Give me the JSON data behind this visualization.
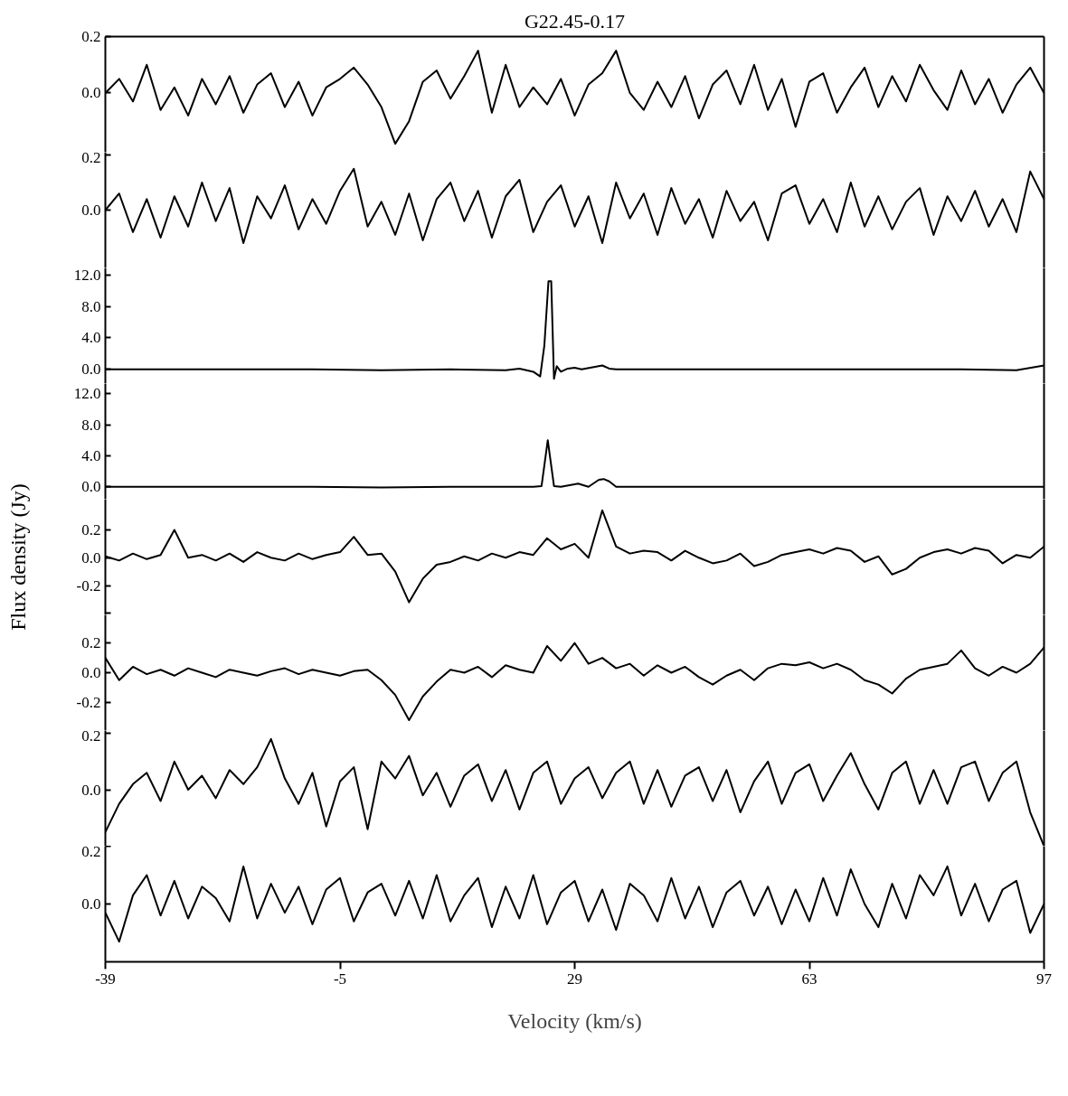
{
  "chart_data": [
    {
      "type": "line",
      "title": "G22.45-0.17",
      "xlim": [
        -39,
        97
      ],
      "ylim": [
        -0.21,
        0.2
      ],
      "yticks": [
        {
          "value": 0.2,
          "label": "0.2"
        },
        {
          "value": 0,
          "label": "0.0"
        }
      ],
      "tick_labels": "y",
      "x": [
        -39,
        -37,
        -35,
        -33,
        -31,
        -29,
        -27,
        -25,
        -23,
        -21,
        -19,
        -17,
        -15,
        -13,
        -11,
        -9,
        -7,
        -5,
        -3,
        -1,
        1,
        3,
        5,
        7,
        9,
        11,
        13,
        15,
        17,
        19,
        21,
        23,
        25,
        27,
        29,
        31,
        33,
        35,
        37,
        39,
        41,
        43,
        45,
        47,
        49,
        51,
        53,
        55,
        57,
        59,
        61,
        63,
        65,
        67,
        69,
        71,
        73,
        75,
        77,
        79,
        81,
        83,
        85,
        87,
        89,
        91,
        93,
        95,
        97
      ],
      "series": [
        {
          "color": "#000000",
          "values": [
            0.0,
            0.05,
            -0.03,
            0.1,
            -0.06,
            0.02,
            -0.08,
            0.05,
            -0.04,
            0.06,
            -0.07,
            0.03,
            0.07,
            -0.05,
            0.04,
            -0.08,
            0.02,
            0.05,
            0.09,
            0.03,
            -0.05,
            -0.18,
            -0.1,
            0.04,
            0.08,
            -0.02,
            0.06,
            0.15,
            -0.07,
            0.1,
            -0.05,
            0.02,
            -0.04,
            0.05,
            -0.08,
            0.03,
            0.07,
            0.15,
            0.0,
            -0.06,
            0.04,
            -0.05,
            0.06,
            -0.09,
            0.03,
            0.08,
            -0.04,
            0.1,
            -0.06,
            0.05,
            -0.12,
            0.04,
            0.07,
            -0.07,
            0.02,
            0.09,
            -0.05,
            0.06,
            -0.03,
            0.1,
            0.01,
            -0.06,
            0.08,
            -0.04,
            0.05,
            -0.07,
            0.03,
            0.09,
            0.0
          ]
        }
      ]
    },
    {
      "type": "line",
      "xlim": [
        -39,
        97
      ],
      "ylim": [
        -0.21,
        0.21
      ],
      "yticks": [
        {
          "value": 0.2,
          "label": "0.2"
        },
        {
          "value": 0,
          "label": "0.0"
        }
      ],
      "tick_labels": "y",
      "x": [
        -39,
        -37,
        -35,
        -33,
        -31,
        -29,
        -27,
        -25,
        -23,
        -21,
        -19,
        -17,
        -15,
        -13,
        -11,
        -9,
        -7,
        -5,
        -3,
        -1,
        1,
        3,
        5,
        7,
        9,
        11,
        13,
        15,
        17,
        19,
        21,
        23,
        25,
        27,
        29,
        31,
        33,
        35,
        37,
        39,
        41,
        43,
        45,
        47,
        49,
        51,
        53,
        55,
        57,
        59,
        61,
        63,
        65,
        67,
        69,
        71,
        73,
        75,
        77,
        79,
        81,
        83,
        85,
        87,
        89,
        91,
        93,
        95,
        97
      ],
      "series": [
        {
          "color": "#000000",
          "values": [
            0.0,
            0.06,
            -0.08,
            0.04,
            -0.1,
            0.05,
            -0.06,
            0.1,
            -0.04,
            0.08,
            -0.12,
            0.05,
            -0.03,
            0.09,
            -0.07,
            0.04,
            -0.05,
            0.07,
            0.15,
            -0.06,
            0.03,
            -0.09,
            0.06,
            -0.11,
            0.04,
            0.1,
            -0.04,
            0.07,
            -0.1,
            0.05,
            0.11,
            -0.08,
            0.03,
            0.09,
            -0.06,
            0.05,
            -0.12,
            0.1,
            -0.03,
            0.06,
            -0.09,
            0.08,
            -0.05,
            0.04,
            -0.1,
            0.07,
            -0.04,
            0.03,
            -0.11,
            0.06,
            0.09,
            -0.05,
            0.04,
            -0.08,
            0.1,
            -0.06,
            0.05,
            -0.07,
            0.03,
            0.08,
            -0.09,
            0.05,
            -0.04,
            0.07,
            -0.06,
            0.04,
            -0.08,
            0.14,
            0.04
          ]
        }
      ]
    },
    {
      "type": "line",
      "xlim": [
        -39,
        97
      ],
      "ylim": [
        -1.8,
        12.9
      ],
      "yticks": [
        {
          "value": 0,
          "label": "0.0"
        },
        {
          "value": 4,
          "label": "4.0"
        },
        {
          "value": 8,
          "label": "8.0"
        },
        {
          "value": 12,
          "label": "12.0"
        }
      ],
      "tick_labels": "y",
      "series": [
        {
          "color": "#000000",
          "x": [
            -39,
            -29,
            -19,
            -9,
            1,
            11,
            19,
            21,
            23,
            24,
            24.6,
            25.2,
            25.6,
            26,
            26.4,
            27,
            28,
            29,
            30,
            33,
            34,
            35,
            45,
            55,
            65,
            75,
            85,
            93,
            97
          ],
          "values": [
            0,
            0.0,
            0.0,
            0,
            -0.1,
            0,
            -0.1,
            0.1,
            -0.3,
            -0.9,
            3.0,
            11.2,
            11.2,
            -1.2,
            0.4,
            -0.3,
            0.1,
            0.2,
            0.0,
            0.5,
            0.1,
            0,
            0,
            0,
            0.0,
            0,
            0,
            -0.1,
            0.5
          ]
        }
      ]
    },
    {
      "type": "line",
      "xlim": [
        -39,
        97
      ],
      "ylim": [
        -1.6,
        13.3
      ],
      "yticks": [
        {
          "value": 0,
          "label": "0.0"
        },
        {
          "value": 4,
          "label": "4.0"
        },
        {
          "value": 8,
          "label": "8.0"
        },
        {
          "value": 12,
          "label": "12.0"
        }
      ],
      "tick_labels": "y",
      "series": [
        {
          "color": "#000000",
          "x": [
            -39,
            -29,
            -19,
            -9,
            1,
            11,
            19,
            23,
            24.2,
            25.1,
            26,
            27,
            29.5,
            31,
            32.5,
            33.2,
            34,
            35,
            45,
            55,
            65,
            75,
            85,
            97
          ],
          "values": [
            0,
            0.0,
            0,
            0,
            -0.1,
            0,
            0.0,
            0,
            0.1,
            6.0,
            0.1,
            0,
            0.4,
            0,
            0.9,
            1.0,
            0.7,
            0,
            0,
            0,
            0,
            0.0,
            0,
            0
          ]
        }
      ]
    },
    {
      "type": "line",
      "ylabel": "Flux density (Jy)",
      "xlim": [
        -39,
        97
      ],
      "ylim": [
        -0.41,
        0.42
      ],
      "yticks": [
        {
          "value": 0.2,
          "label": "0.2"
        },
        {
          "value": 0,
          "label": "0.0"
        },
        {
          "value": -0.2,
          "label": "-0.2"
        },
        {
          "value": -0.4,
          "label": null
        }
      ],
      "tick_labels": "y",
      "x": [
        -39,
        -37,
        -35,
        -33,
        -31,
        -29,
        -27,
        -25,
        -23,
        -21,
        -19,
        -17,
        -15,
        -13,
        -11,
        -9,
        -7,
        -5,
        -3,
        -1,
        1,
        3,
        5,
        7,
        9,
        11,
        13,
        15,
        17,
        19,
        21,
        23,
        25,
        27,
        29,
        31,
        33,
        35,
        37,
        39,
        41,
        43,
        45,
        47,
        49,
        51,
        53,
        55,
        57,
        59,
        61,
        63,
        65,
        67,
        69,
        71,
        73,
        75,
        77,
        79,
        81,
        83,
        85,
        87,
        89,
        91,
        93,
        95,
        97
      ],
      "series": [
        {
          "color": "#000000",
          "values": [
            0.01,
            -0.02,
            0.03,
            -0.01,
            0.02,
            0.2,
            0.0,
            0.02,
            -0.02,
            0.03,
            -0.03,
            0.04,
            0.0,
            -0.02,
            0.03,
            -0.01,
            0.02,
            0.04,
            0.15,
            0.02,
            0.03,
            -0.1,
            -0.32,
            -0.15,
            -0.05,
            -0.03,
            0.01,
            -0.02,
            0.03,
            0.0,
            0.04,
            0.02,
            0.14,
            0.06,
            0.1,
            0.0,
            0.34,
            0.08,
            0.03,
            0.05,
            0.04,
            -0.02,
            0.05,
            0.0,
            -0.04,
            -0.02,
            0.03,
            -0.06,
            -0.03,
            0.02,
            0.04,
            0.06,
            0.03,
            0.07,
            0.05,
            -0.03,
            0.01,
            -0.12,
            -0.08,
            0.0,
            0.04,
            0.06,
            0.03,
            0.07,
            0.05,
            -0.04,
            0.02,
            0.0,
            0.08
          ]
        }
      ]
    },
    {
      "type": "line",
      "xlim": [
        -39,
        97
      ],
      "ylim": [
        -0.39,
        0.39
      ],
      "yticks": [
        {
          "value": 0.2,
          "label": "0.2"
        },
        {
          "value": 0,
          "label": "0.0"
        },
        {
          "value": -0.2,
          "label": "-0.2"
        }
      ],
      "tick_labels": "y",
      "x": [
        -39,
        -37,
        -35,
        -33,
        -31,
        -29,
        -27,
        -25,
        -23,
        -21,
        -19,
        -17,
        -15,
        -13,
        -11,
        -9,
        -7,
        -5,
        -3,
        -1,
        1,
        3,
        5,
        7,
        9,
        11,
        13,
        15,
        17,
        19,
        21,
        23,
        25,
        27,
        29,
        31,
        33,
        35,
        37,
        39,
        41,
        43,
        45,
        47,
        49,
        51,
        53,
        55,
        57,
        59,
        61,
        63,
        65,
        67,
        69,
        71,
        73,
        75,
        77,
        79,
        81,
        83,
        85,
        87,
        89,
        91,
        93,
        95,
        97
      ],
      "series": [
        {
          "color": "#000000",
          "values": [
            0.1,
            -0.05,
            0.04,
            -0.01,
            0.02,
            -0.02,
            0.03,
            0.0,
            -0.03,
            0.02,
            0.0,
            -0.02,
            0.01,
            0.03,
            -0.01,
            0.02,
            0.0,
            -0.02,
            0.01,
            0.02,
            -0.05,
            -0.15,
            -0.32,
            -0.16,
            -0.06,
            0.02,
            0.0,
            0.04,
            -0.03,
            0.05,
            0.02,
            0.0,
            0.18,
            0.08,
            0.2,
            0.06,
            0.1,
            0.03,
            0.06,
            -0.02,
            0.05,
            0.0,
            0.04,
            -0.03,
            -0.08,
            -0.02,
            0.02,
            -0.05,
            0.03,
            0.06,
            0.05,
            0.07,
            0.03,
            0.06,
            0.02,
            -0.05,
            -0.08,
            -0.14,
            -0.04,
            0.02,
            0.04,
            0.06,
            0.15,
            0.03,
            -0.02,
            0.04,
            0.0,
            0.06,
            0.17
          ]
        }
      ]
    },
    {
      "type": "line",
      "xlim": [
        -39,
        97
      ],
      "ylim": [
        -0.2,
        0.21
      ],
      "yticks": [
        {
          "value": 0.2,
          "label": "0.2"
        },
        {
          "value": 0,
          "label": "0.0"
        }
      ],
      "tick_labels": "y",
      "x": [
        -39,
        -37,
        -35,
        -33,
        -31,
        -29,
        -27,
        -25,
        -23,
        -21,
        -19,
        -17,
        -15,
        -13,
        -11,
        -9,
        -7,
        -5,
        -3,
        -1,
        1,
        3,
        5,
        7,
        9,
        11,
        13,
        15,
        17,
        19,
        21,
        23,
        25,
        27,
        29,
        31,
        33,
        35,
        37,
        39,
        41,
        43,
        45,
        47,
        49,
        51,
        53,
        55,
        57,
        59,
        61,
        63,
        65,
        67,
        69,
        71,
        73,
        75,
        77,
        79,
        81,
        83,
        85,
        87,
        89,
        91,
        93,
        95,
        97
      ],
      "series": [
        {
          "color": "#000000",
          "values": [
            -0.15,
            -0.05,
            0.02,
            0.06,
            -0.04,
            0.1,
            0.0,
            0.05,
            -0.03,
            0.07,
            0.02,
            0.08,
            0.18,
            0.04,
            -0.05,
            0.06,
            -0.13,
            0.03,
            0.08,
            -0.14,
            0.1,
            0.04,
            0.12,
            -0.02,
            0.06,
            -0.06,
            0.05,
            0.09,
            -0.04,
            0.07,
            -0.07,
            0.06,
            0.1,
            -0.05,
            0.04,
            0.08,
            -0.03,
            0.06,
            0.1,
            -0.05,
            0.07,
            -0.06,
            0.05,
            0.08,
            -0.04,
            0.07,
            -0.08,
            0.03,
            0.1,
            -0.05,
            0.06,
            0.09,
            -0.04,
            0.05,
            0.13,
            0.02,
            -0.07,
            0.06,
            0.1,
            -0.05,
            0.07,
            -0.05,
            0.08,
            0.1,
            -0.04,
            0.06,
            0.1,
            -0.08,
            -0.2
          ]
        }
      ]
    },
    {
      "type": "line",
      "xlabel": "Velocity (km/s)",
      "xlim": [
        -39,
        97
      ],
      "xticks": [
        -39,
        -5,
        29,
        63,
        97
      ],
      "ylim": [
        -0.2,
        0.2
      ],
      "yticks": [
        {
          "value": 0.2,
          "label": "0.2"
        },
        {
          "value": 0,
          "label": "0.0"
        }
      ],
      "x": [
        -39,
        -37,
        -35,
        -33,
        -31,
        -29,
        -27,
        -25,
        -23,
        -21,
        -19,
        -17,
        -15,
        -13,
        -11,
        -9,
        -7,
        -5,
        -3,
        -1,
        1,
        3,
        5,
        7,
        9,
        11,
        13,
        15,
        17,
        19,
        21,
        23,
        25,
        27,
        29,
        31,
        33,
        35,
        37,
        39,
        41,
        43,
        45,
        47,
        49,
        51,
        53,
        55,
        57,
        59,
        61,
        63,
        65,
        67,
        69,
        71,
        73,
        75,
        77,
        79,
        81,
        83,
        85,
        87,
        89,
        91,
        93,
        95,
        97
      ],
      "series": [
        {
          "color": "#000000",
          "values": [
            -0.03,
            -0.13,
            0.03,
            0.1,
            -0.04,
            0.08,
            -0.05,
            0.06,
            0.02,
            -0.06,
            0.13,
            -0.05,
            0.07,
            -0.03,
            0.06,
            -0.07,
            0.05,
            0.09,
            -0.06,
            0.04,
            0.07,
            -0.04,
            0.08,
            -0.05,
            0.1,
            -0.06,
            0.03,
            0.09,
            -0.08,
            0.06,
            -0.05,
            0.1,
            -0.07,
            0.04,
            0.08,
            -0.06,
            0.05,
            -0.09,
            0.07,
            0.03,
            -0.06,
            0.09,
            -0.05,
            0.06,
            -0.08,
            0.04,
            0.08,
            -0.04,
            0.06,
            -0.07,
            0.05,
            -0.06,
            0.09,
            -0.04,
            0.12,
            0.0,
            -0.08,
            0.07,
            -0.05,
            0.1,
            0.03,
            0.13,
            -0.04,
            0.07,
            -0.06,
            0.05,
            0.08,
            -0.1,
            0.0
          ]
        }
      ]
    }
  ]
}
